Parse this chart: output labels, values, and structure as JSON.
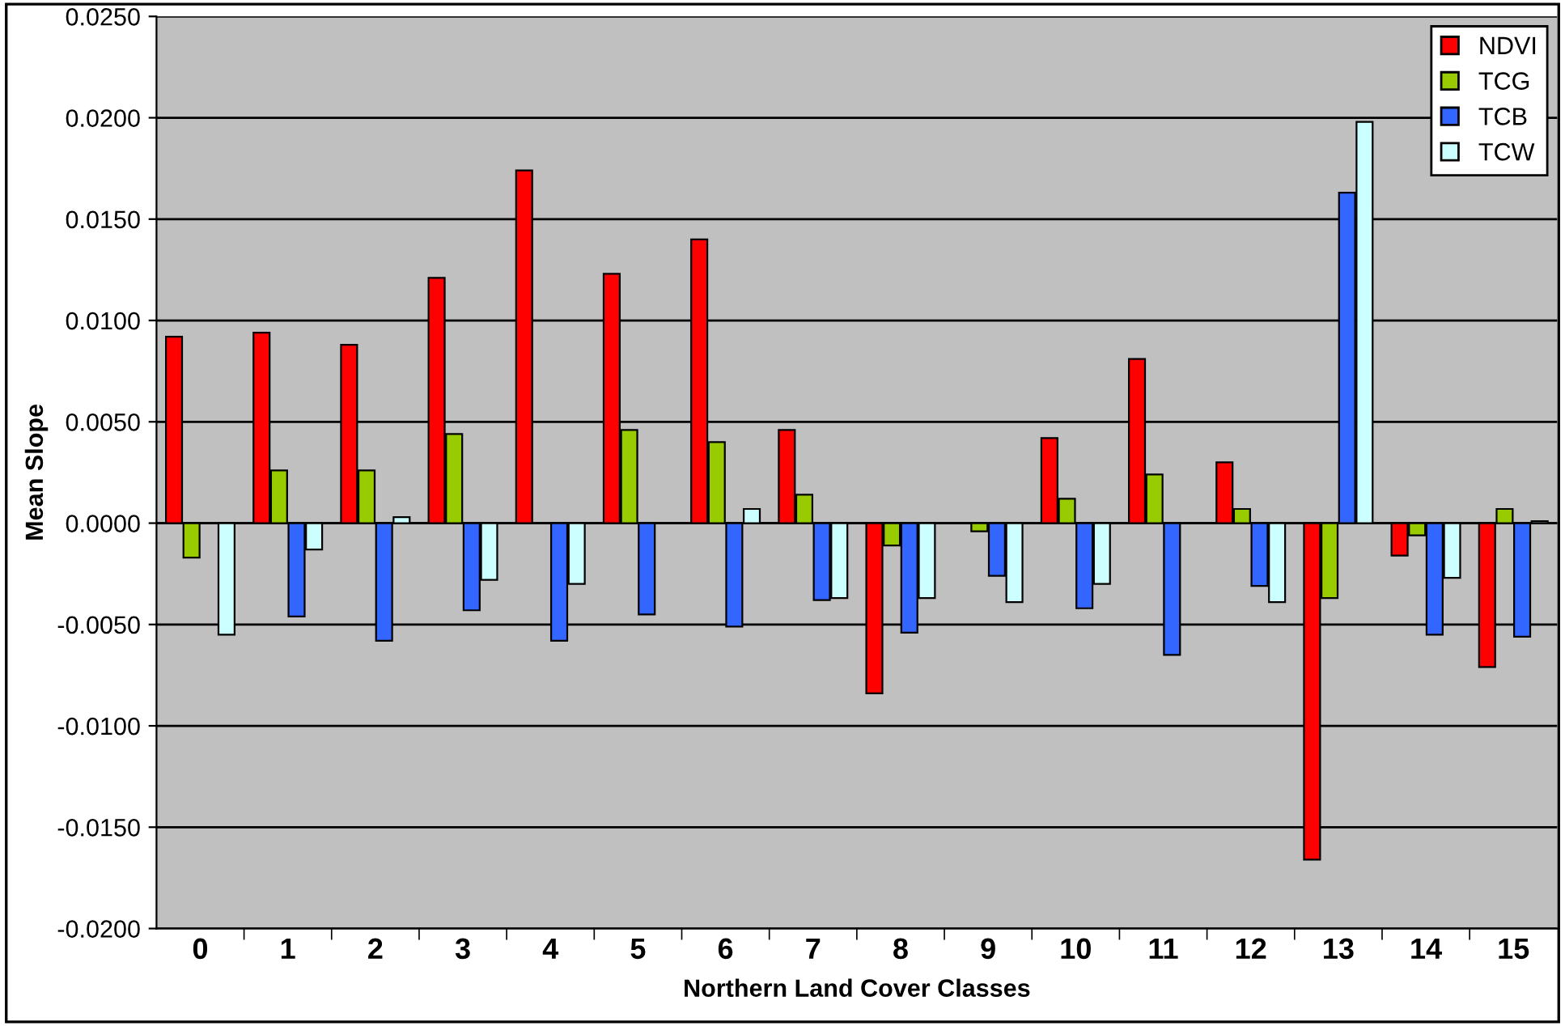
{
  "chart_data": {
    "type": "bar",
    "xlabel": "Northern Land Cover Classes",
    "ylabel": "Mean Slope",
    "categories": [
      "0",
      "1",
      "2",
      "3",
      "4",
      "5",
      "6",
      "7",
      "8",
      "9",
      "10",
      "11",
      "12",
      "13",
      "14",
      "15"
    ],
    "series": [
      {
        "name": "NDVI",
        "color": "#ff0000",
        "values": [
          0.0092,
          0.0094,
          0.0088,
          0.0121,
          0.0174,
          0.0123,
          0.014,
          0.0046,
          -0.0084,
          null,
          0.0042,
          0.0081,
          0.003,
          -0.0166,
          -0.0016,
          -0.0071
        ]
      },
      {
        "name": "TCG",
        "color": "#99cc00",
        "values": [
          -0.0017,
          0.0026,
          0.0026,
          0.0044,
          null,
          0.0046,
          0.004,
          0.0014,
          -0.0011,
          -0.0004,
          0.0012,
          0.0024,
          0.0007,
          -0.0037,
          -0.0006,
          0.0007
        ]
      },
      {
        "name": "TCB",
        "color": "#3366ff",
        "values": [
          null,
          -0.0046,
          -0.0058,
          -0.0043,
          -0.0058,
          -0.0045,
          -0.0051,
          -0.0038,
          -0.0054,
          -0.0026,
          -0.0042,
          -0.0065,
          -0.0031,
          0.0163,
          -0.0055,
          -0.0056
        ]
      },
      {
        "name": "TCW",
        "color": "#ccffff",
        "values": [
          -0.0055,
          -0.0013,
          0.0003,
          -0.0028,
          -0.003,
          null,
          0.0007,
          -0.0037,
          -0.0037,
          -0.0039,
          -0.003,
          null,
          -0.0039,
          0.0198,
          -0.0027,
          0.0001
        ]
      }
    ],
    "ylim": [
      -0.02,
      0.025
    ],
    "yticks": [
      {
        "value": -0.02,
        "label": "-0.0200"
      },
      {
        "value": -0.015,
        "label": "-0.0150"
      },
      {
        "value": -0.01,
        "label": "-0.0100"
      },
      {
        "value": -0.005,
        "label": "-0.0050"
      },
      {
        "value": 0,
        "label": "0.0000"
      },
      {
        "value": 0.005,
        "label": "0.0050"
      },
      {
        "value": 0.01,
        "label": "0.0100"
      },
      {
        "value": 0.015,
        "label": "0.0150"
      },
      {
        "value": 0.02,
        "label": "0.0200"
      },
      {
        "value": 0.025,
        "label": "0.0250"
      }
    ],
    "grid": "y",
    "legend": "top right"
  }
}
